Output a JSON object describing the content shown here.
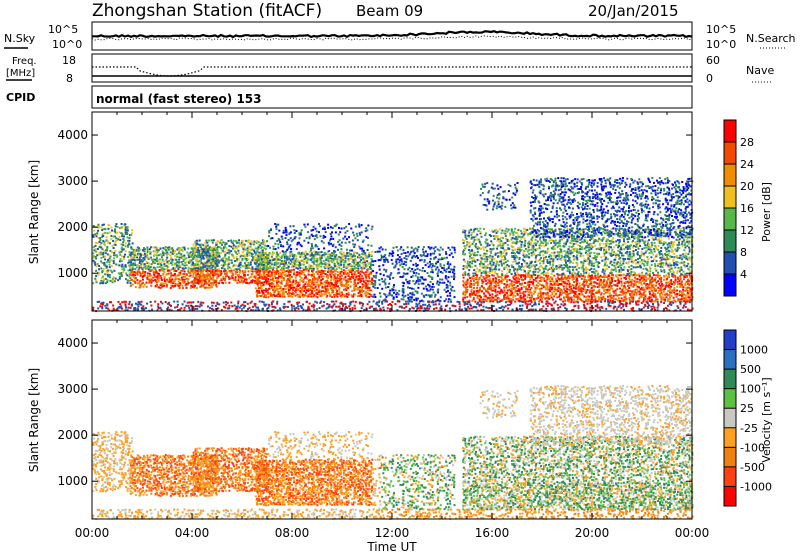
{
  "header": {
    "station": "Zhongshan Station (fitACF)",
    "beam": "Beam 09",
    "date": "20/Jan/2015"
  },
  "noise_panel": {
    "left_label": "N.Sky",
    "right_label": "N.Search",
    "left_ticks": [
      "10^5",
      "10^0"
    ],
    "right_ticks": [
      "10^5",
      "10^0"
    ]
  },
  "freq_panel": {
    "label_line1": "Freq.",
    "label_line2": "[MHz]",
    "left_ticks": [
      "18",
      "8"
    ],
    "right_ticks": [
      "60",
      "0"
    ],
    "right_label": "Nave"
  },
  "cpid": {
    "label": "CPID",
    "value": "normal (fast stereo) 153"
  },
  "colors": {
    "power": [
      "#0000ff",
      "#1f4fb0",
      "#2e8b57",
      "#55b848",
      "#f0c020",
      "#f08c00",
      "#f24a00",
      "#ff0000"
    ],
    "velocity_pos": [
      "#1f3fc8",
      "#2a6fc0",
      "#2e8b57",
      "#5cc040",
      "#c8c8c0"
    ],
    "velocity_neg": [
      "#c8c8c0",
      "#ffa020",
      "#f08010",
      "#ff4010",
      "#ff0000"
    ]
  },
  "chart_data": [
    {
      "type": "heatmap",
      "title": "",
      "xlabel": "",
      "ylabel": "Slant Range [km]",
      "x_ticks": [
        "00:00",
        "04:00",
        "08:00",
        "12:00",
        "16:00",
        "20:00",
        "00:00"
      ],
      "y_ticks": [
        1000,
        2000,
        3000,
        4000
      ],
      "ylim": [
        180,
        4500
      ],
      "xlim": [
        0,
        24
      ],
      "colorbar": {
        "label": "Power [dB]",
        "ticks": [
          "28",
          "24",
          "20",
          "16",
          "12",
          "8",
          "4"
        ]
      }
    },
    {
      "type": "heatmap",
      "title": "",
      "xlabel": "Time UT",
      "ylabel": "Slant Range [km]",
      "x_ticks": [
        "00:00",
        "04:00",
        "08:00",
        "12:00",
        "16:00",
        "20:00",
        "00:00"
      ],
      "y_ticks": [
        1000,
        2000,
        3000,
        4000
      ],
      "ylim": [
        180,
        4500
      ],
      "xlim": [
        0,
        24
      ],
      "colorbar": {
        "label": "Velocity [m s⁻¹]",
        "ticks": [
          "1000",
          "500",
          "100",
          "25",
          "-25",
          "-100",
          "-500",
          "-1000"
        ]
      }
    }
  ]
}
